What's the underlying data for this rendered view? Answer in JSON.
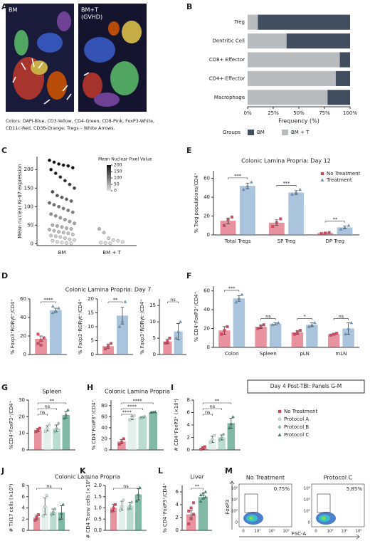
{
  "panels": [
    "A",
    "B",
    "C",
    "D",
    "E",
    "F",
    "G",
    "H",
    "I",
    "J",
    "K",
    "L",
    "M"
  ],
  "images": {
    "labels": [
      "BM",
      "BM+T",
      "(GVHD)"
    ],
    "caption": [
      "Colors: DAPI-Blue, CD3-Yellow, CD4-Green, CD8-Pink, FoxP3-White,",
      "CD11c-Red, CD38-Orange; Tregs – White Arrows."
    ]
  },
  "note": "Day 4 Post-TBI: Panels G-M",
  "flow": {
    "titles": [
      "No Treatment",
      "Protocol C"
    ],
    "gates": [
      "0.75%",
      "5.85%"
    ],
    "ylabel": "FoxP3",
    "xlabel": "FSC-A",
    "yticks": [
      "10⁶",
      "10⁵",
      "10⁴",
      "0"
    ],
    "xticks": [
      "0",
      "10⁴",
      "10⁵",
      "10⁶"
    ]
  },
  "chart_data": [
    {
      "type": "stacked_hbar",
      "categories": [
        "Treg",
        "Dentritic Cell",
        "CD8+ Effector",
        "CD4+ Effector",
        "Macrophage"
      ],
      "series": [
        {
          "name": "BM",
          "color": "#3f4d5e",
          "values": [
            90,
            62,
            10,
            14,
            22
          ]
        },
        {
          "name": "BM + T",
          "color": "#b9bcbf",
          "values": [
            10,
            38,
            90,
            86,
            78
          ]
        }
      ],
      "xlim": [
        0,
        100
      ],
      "xticks": [
        {
          "value": 0,
          "label": "0%"
        },
        {
          "value": 25,
          "label": "25%"
        },
        {
          "value": 50,
          "label": "50%"
        },
        {
          "value": 75,
          "label": "75%"
        },
        {
          "value": 100,
          "label": "100%"
        }
      ],
      "xlabel": "Frequency (%)",
      "legend_title": "Groups",
      "legend": "bottom"
    },
    {
      "type": "strip",
      "categories": [
        "BM",
        "BM + T"
      ],
      "ylabel": "Mean nuclear Ki-67 expression",
      "values": [
        [
          225,
          220,
          215,
          212,
          210,
          205,
          200,
          190,
          180,
          170,
          160,
          150,
          140,
          130,
          125,
          120,
          115,
          110,
          105,
          100,
          95,
          90,
          85,
          80,
          75,
          70,
          65,
          60,
          55,
          50,
          48,
          45,
          42,
          40,
          38,
          35,
          32,
          30,
          28,
          25,
          22,
          20,
          18,
          15,
          12,
          10,
          8,
          5,
          3,
          2,
          1
        ],
        [
          40,
          30,
          15,
          10,
          8,
          5,
          3,
          2,
          1
        ]
      ],
      "ylim": [
        -5,
        235
      ],
      "yticks": [
        0,
        50,
        100,
        150,
        200
      ],
      "colorbar": {
        "title": "Mean Nuclear Pixel Value",
        "lim": [
          0,
          200
        ],
        "ticks": [
          200,
          150,
          100,
          50,
          0
        ]
      }
    },
    {
      "type": "dotbar",
      "title": "Colonic Lamina Propria: Day 12",
      "ylabel": "% Treg populations/CD4⁺",
      "categories": [
        "Total Tregs",
        "SP Treg",
        "DP Treg"
      ],
      "ylim": [
        0,
        68
      ],
      "yticks": [
        0,
        20,
        40,
        60
      ],
      "legend": "upper right",
      "series": [
        {
          "name": "No Treatment",
          "color": "#d9485f",
          "marker": "square",
          "values": [
            15,
            13,
            2
          ],
          "errors": [
            3,
            3,
            0.5
          ],
          "points": [
            [
              10,
              16,
              19
            ],
            [
              9,
              13,
              17
            ],
            [
              1.5,
              2,
              2.5
            ]
          ]
        },
        {
          "name": "Treatment",
          "color": "#6f9cc4",
          "marker": "triangle",
          "values": [
            52,
            45,
            8
          ],
          "errors": [
            3,
            2,
            1.5
          ],
          "points": [
            [
              48,
              52,
              56
            ],
            [
              43,
              45,
              48
            ],
            [
              6,
              8,
              10
            ]
          ]
        }
      ],
      "annotations": [
        "***",
        "***",
        "**"
      ]
    },
    {
      "type": "dotbar",
      "ylabel": "% Foxp3⁺RORγt⁺/CD4⁺",
      "categories": [
        null
      ],
      "ylim": [
        0,
        60
      ],
      "yticks": [
        0,
        20,
        40,
        60
      ],
      "series": [
        {
          "color": "#d9485f",
          "marker": "square",
          "values": [
            17
          ],
          "errors": [
            3
          ],
          "points": [
            [
              12,
              15,
              18,
              22,
              10
            ]
          ]
        },
        {
          "color": "#6f9cc4",
          "marker": "triangle",
          "values": [
            48
          ],
          "errors": [
            2
          ],
          "points": [
            [
              45,
              47,
              50,
              52,
              46
            ]
          ]
        }
      ],
      "annotations": [
        "****"
      ]
    },
    {
      "type": "dotbar",
      "title": "Colonic Lamina Propria: Day 7",
      "ylabel": "% Foxp3⁻RORγt⁺/CD4⁺",
      "categories": [
        null
      ],
      "ylim": [
        0,
        20
      ],
      "yticks": [
        0,
        5,
        10,
        15,
        20
      ],
      "series": [
        {
          "color": "#d9485f",
          "marker": "square",
          "values": [
            3
          ],
          "errors": [
            0.8
          ],
          "points": [
            [
              2,
              3,
              4
            ]
          ]
        },
        {
          "color": "#6f9cc4",
          "marker": "triangle",
          "values": [
            14
          ],
          "errors": [
            3
          ],
          "points": [
            [
              10,
              12,
              19
            ]
          ]
        }
      ],
      "annotations": [
        "**"
      ]
    },
    {
      "type": "dotbar",
      "ylabel": "% Foxp3⁺RORγt⁻/CD4⁺",
      "categories": [
        null
      ],
      "ylim": [
        0,
        17
      ],
      "yticks": [
        0,
        5,
        10,
        15
      ],
      "series": [
        {
          "color": "#d9485f",
          "marker": "square",
          "values": [
            4
          ],
          "errors": [
            0.7
          ],
          "points": [
            [
              3.5,
              4,
              5
            ]
          ]
        },
        {
          "color": "#6f9cc4",
          "marker": "triangle",
          "values": [
            7
          ],
          "errors": [
            2.5
          ],
          "points": [
            [
              5,
              7,
              10
            ]
          ]
        }
      ],
      "annotations": [
        "ns"
      ]
    },
    {
      "type": "dotbar",
      "ylabel": "% CD4⁺FoxP3⁺/CD4⁺",
      "categories": [
        "Colon",
        "Spleen",
        "pLN",
        "mLN"
      ],
      "ylim": [
        0,
        65
      ],
      "yticks": [
        0,
        20,
        40,
        60
      ],
      "series": [
        {
          "color": "#d9485f",
          "marker": "square",
          "values": [
            18,
            22,
            16,
            14
          ],
          "errors": [
            4,
            2,
            2,
            1
          ],
          "points": [
            [
              14,
              18,
              22
            ],
            [
              20,
              22,
              24
            ],
            [
              14,
              16,
              18
            ],
            [
              13,
              14,
              15
            ]
          ]
        },
        {
          "color": "#6f9cc4",
          "marker": "triangle",
          "values": [
            52,
            25,
            24,
            20
          ],
          "errors": [
            3,
            1,
            2,
            6
          ],
          "points": [
            [
              48,
              52,
              56
            ],
            [
              24,
              25,
              26
            ],
            [
              22,
              24,
              26
            ],
            [
              14,
              20,
              26
            ]
          ]
        }
      ],
      "annotations": [
        "***",
        "ns",
        "*",
        "ns"
      ]
    },
    {
      "type": "dotbar",
      "title": "Spleen",
      "ylabel": "%CD4⁺FoxP3⁺/CD4⁺",
      "categories": [
        null
      ],
      "ylim": [
        0,
        30
      ],
      "yticks": [
        0,
        10,
        20,
        30
      ],
      "series": [
        {
          "color": "#d9485f",
          "marker": "square",
          "values": [
            12
          ],
          "errors": [
            1
          ],
          "points": [
            [
              11,
              12,
              13
            ]
          ]
        },
        {
          "color": "#cfe5dd",
          "marker": "circle",
          "values": [
            13
          ],
          "errors": [
            1.5
          ],
          "points": [
            [
              11,
              13,
              15
            ]
          ]
        },
        {
          "color": "#8cc4b0",
          "marker": "diamond",
          "values": [
            13
          ],
          "errors": [
            2
          ],
          "points": [
            [
              11,
              13,
              16
            ]
          ]
        },
        {
          "color": "#2f8a6a",
          "marker": "triangle",
          "values": [
            21
          ],
          "errors": [
            2
          ],
          "points": [
            [
              19,
              21,
              24
            ]
          ]
        }
      ],
      "annotations": [
        "ns",
        "ns",
        "**"
      ]
    },
    {
      "type": "dotbar",
      "title": "Colonic Lamina Propria",
      "ylabel": "% CD4⁺FoxP3⁺/CD4⁺",
      "categories": [
        null
      ],
      "ylim": [
        0,
        90
      ],
      "yticks": [
        0,
        20,
        40,
        60,
        80
      ],
      "series": [
        {
          "color": "#d9485f",
          "marker": "square",
          "values": [
            15
          ],
          "errors": [
            4
          ],
          "points": [
            [
              10,
              14,
              20
            ]
          ]
        },
        {
          "color": "#cfe5dd",
          "marker": "circle",
          "values": [
            58
          ],
          "errors": [
            3
          ],
          "points": [
            [
              54,
              58,
              62
            ]
          ]
        },
        {
          "color": "#8cc4b0",
          "marker": "diamond",
          "values": [
            59
          ],
          "errors": [
            1
          ],
          "points": [
            [
              58,
              59,
              60
            ]
          ]
        },
        {
          "color": "#2f8a6a",
          "marker": "triangle",
          "values": [
            68
          ],
          "errors": [
            0.5
          ],
          "points": [
            [
              67.5,
              68,
              68.5
            ]
          ]
        }
      ],
      "annotations": [
        "****",
        "****",
        "****"
      ]
    },
    {
      "type": "dotbar",
      "ylabel": "# CD4⁺FoxP3⁺ (×10⁴)",
      "categories": [
        null
      ],
      "ylim": [
        0,
        8
      ],
      "yticks": [
        0,
        2,
        4,
        6,
        8
      ],
      "legend": "right",
      "series": [
        {
          "name": "No Treatment",
          "color": "#d9485f",
          "marker": "square",
          "values": [
            0.3
          ],
          "errors": [
            0.2
          ],
          "points": [
            [
              0.1,
              0.3,
              0.5
            ]
          ]
        },
        {
          "name": "Protocol A",
          "color": "#cfe5dd",
          "marker": "circle",
          "values": [
            1.7
          ],
          "errors": [
            0.5
          ],
          "points": [
            [
              1.2,
              1.7,
              2.3
            ]
          ]
        },
        {
          "name": "Protocol B",
          "color": "#8cc4b0",
          "marker": "diamond",
          "values": [
            2
          ],
          "errors": [
            0.4
          ],
          "points": [
            [
              1.6,
              2,
              2.5
            ]
          ]
        },
        {
          "name": "Protocol C",
          "color": "#2f8a6a",
          "marker": "triangle",
          "values": [
            4.3
          ],
          "errors": [
            0.8
          ],
          "points": [
            [
              3.5,
              4.2,
              5.3
            ]
          ]
        }
      ],
      "annotations": [
        "ns",
        "ns",
        "**"
      ]
    },
    {
      "type": "dotbar",
      "title": "Colonic  Lamina Propria",
      "ylabel": "# TH17 cells (×10³)",
      "categories": [
        null
      ],
      "ylim": [
        0,
        8
      ],
      "yticks": [
        0,
        2,
        4,
        6,
        8
      ],
      "series": [
        {
          "color": "#d9485f",
          "marker": "square",
          "values": [
            2.3
          ],
          "errors": [
            0.4
          ],
          "points": [
            [
              1.8,
              2.3,
              2.8
            ]
          ]
        },
        {
          "color": "#cfe5dd",
          "marker": "circle",
          "values": [
            4.3
          ],
          "errors": [
            1.5
          ],
          "points": [
            [
              2.5,
              4.2,
              6.2
            ]
          ]
        },
        {
          "color": "#8cc4b0",
          "marker": "diamond",
          "values": [
            3.3
          ],
          "errors": [
            0.5
          ],
          "points": [
            [
              2.8,
              3.3,
              3.8
            ]
          ]
        },
        {
          "color": "#2f8a6a",
          "marker": "triangle",
          "values": [
            3.2
          ],
          "errors": [
            1.2
          ],
          "points": [
            [
              2,
              3,
              4.6
            ]
          ]
        }
      ],
      "annotations": [
        "ns"
      ]
    },
    {
      "type": "dotbar",
      "ylabel": "# CD4 Tconv cells (×10⁶)",
      "categories": [
        null
      ],
      "ylim": [
        0,
        2
      ],
      "yticks": [
        {
          "value": 0,
          "label": "0.0"
        },
        0.5,
        {
          "value": 1,
          "label": "1.0"
        },
        1.5,
        {
          "value": 2,
          "label": "2.0"
        }
      ],
      "series": [
        {
          "color": "#d9485f",
          "marker": "square",
          "values": [
            1.0
          ],
          "errors": [
            0.15
          ],
          "points": [
            [
              0.85,
              1,
              1.15
            ]
          ]
        },
        {
          "color": "#cfe5dd",
          "marker": "circle",
          "values": [
            1.1
          ],
          "errors": [
            0.2
          ],
          "points": [
            [
              0.9,
              1.05,
              1.35
            ]
          ]
        },
        {
          "color": "#8cc4b0",
          "marker": "diamond",
          "values": [
            1.1
          ],
          "errors": [
            0.15
          ],
          "points": [
            [
              0.95,
              1.1,
              1.25
            ]
          ]
        },
        {
          "color": "#2f8a6a",
          "marker": "triangle",
          "values": [
            1.6
          ],
          "errors": [
            0.25
          ],
          "points": [
            [
              1.3,
              1.6,
              1.9
            ]
          ]
        }
      ],
      "annotations": [
        "ns"
      ]
    },
    {
      "type": "dotbar",
      "title": "Liver",
      "ylabel": "% CD4⁺FoxP3⁺/CD4⁺",
      "categories": [
        null
      ],
      "ylim": [
        0,
        7
      ],
      "yticks": [
        0,
        2,
        4,
        6
      ],
      "series": [
        {
          "color": "#d9485f",
          "marker": "square",
          "values": [
            2.5
          ],
          "errors": [
            0.6
          ],
          "points": [
            [
              1,
              1.8,
              2.5,
              3,
              3.5,
              4.3
            ]
          ]
        },
        {
          "color": "#2f8a6a",
          "marker": "triangle",
          "values": [
            5.2
          ],
          "errors": [
            0.3
          ],
          "points": [
            [
              4.5,
              5,
              5.2,
              5.5,
              5.8,
              6
            ]
          ]
        }
      ],
      "annotations": [
        "**"
      ]
    }
  ]
}
